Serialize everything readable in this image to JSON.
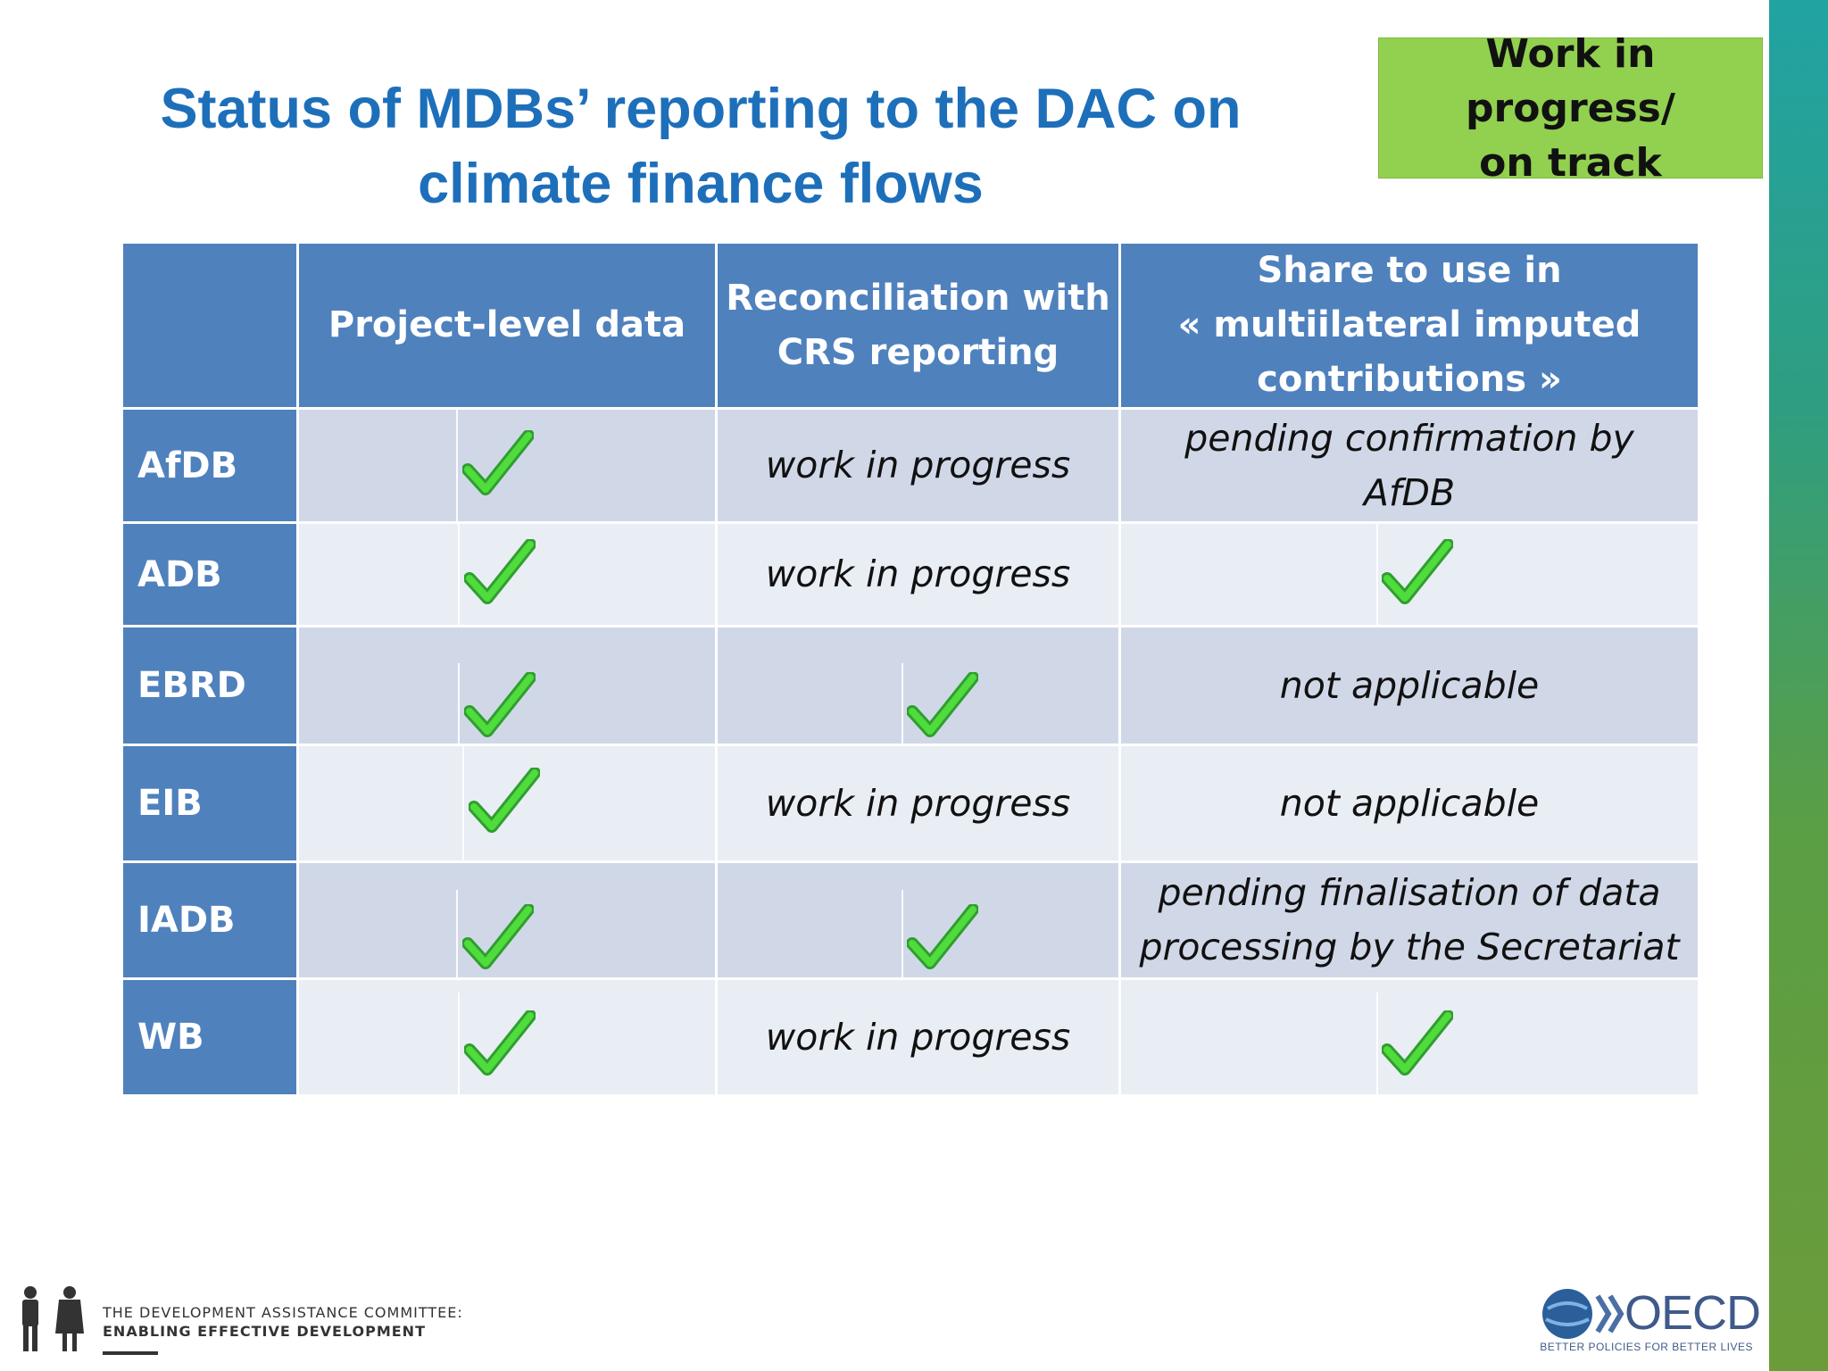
{
  "slide": {
    "title_line1": "Status of MDBs’ reporting to the DAC on",
    "title_line2": "climate finance flows",
    "badge_line1": "Work in progress/",
    "badge_line2": "on track"
  },
  "table": {
    "headers": [
      "",
      "Project-level data",
      "Reconciliation with CRS reporting",
      "Share to use in « multiilateral imputed contributions »"
    ],
    "header_lines": {
      "col2": [
        "Reconciliation with",
        "CRS reporting"
      ],
      "col3": [
        "Share to use in",
        "« multiilateral imputed",
        "contributions »"
      ]
    },
    "rows": [
      {
        "label": "AfDB",
        "project_level": "check",
        "reconciliation": "work in progress",
        "share": [
          "pending confirmation by",
          "AfDB"
        ]
      },
      {
        "label": "ADB",
        "project_level": "check",
        "reconciliation": "work in progress",
        "share": "check"
      },
      {
        "label": "EBRD",
        "project_level": "check",
        "reconciliation": "check",
        "share": "not applicable"
      },
      {
        "label": "EIB",
        "project_level": "check",
        "reconciliation": "work in progress",
        "share": "not applicable"
      },
      {
        "label": "IADB",
        "project_level": "check",
        "reconciliation": "check",
        "share": [
          "pending finalisation of data",
          "processing by the Secretariat"
        ]
      },
      {
        "label": "WB",
        "project_level": "check",
        "reconciliation": "work in progress",
        "share": "check"
      }
    ]
  },
  "footer": {
    "dac_line1": "THE DEVELOPMENT ASSISTANCE COMMITTEE:",
    "dac_line2": "ENABLING EFFECTIVE DEVELOPMENT",
    "oecd_logo": "OECD",
    "oecd_tagline": "BETTER POLICIES FOR BETTER LIVES"
  },
  "colors": {
    "title": "#1d6fba",
    "badge": "#92d050",
    "header": "#4f81bd",
    "row_dark": "#d0d8e8",
    "row_light": "#e9edf4",
    "check": "#33cc33"
  },
  "icons": [
    "checkmark-icon",
    "dac-people-logo",
    "oecd-globe-logo"
  ]
}
